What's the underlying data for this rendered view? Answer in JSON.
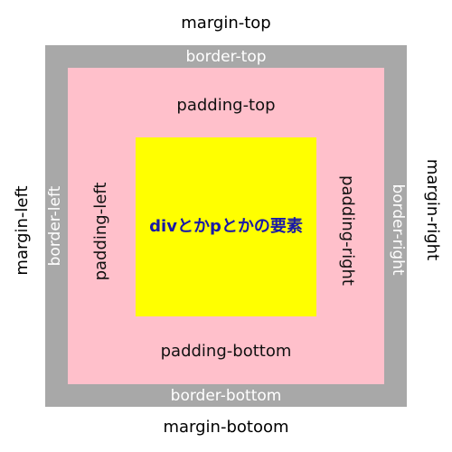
{
  "colors": {
    "border_gray": "#a8a8a8",
    "padding_pink": "#ffc0cb",
    "content_yellow": "#ffff00",
    "content_text_blue": "#1a1aa6"
  },
  "labels": {
    "margin_top": "margin-top",
    "margin_left": "margin-left",
    "margin_right": "margin-right",
    "margin_bottom": "margin-botoom",
    "border_top": "border-top",
    "border_left": "border-left",
    "border_right": "border-right",
    "border_bottom": "border-bottom",
    "padding_top": "padding-top",
    "padding_left": "padding-left",
    "padding_right": "padding-right",
    "padding_bottom": "padding-bottom",
    "content": "divとかpとかの要素"
  }
}
